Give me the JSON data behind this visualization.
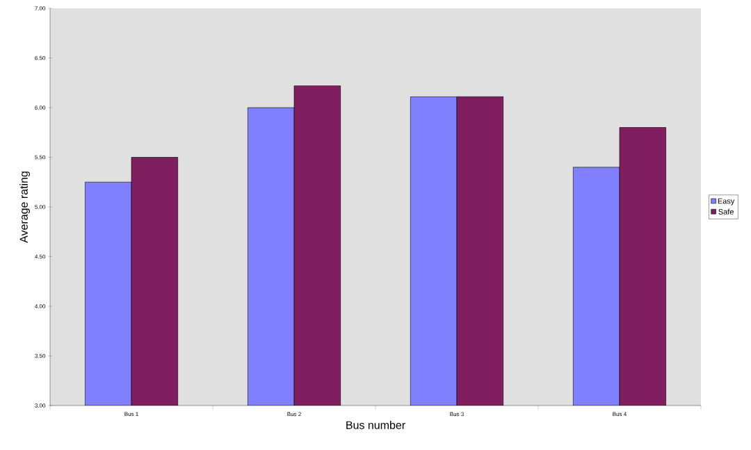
{
  "chart_data": {
    "type": "bar",
    "xlabel": "Bus number",
    "ylabel": "Average rating",
    "categories": [
      "Bus 1",
      "Bus 2",
      "Bus 3",
      "Bus 4"
    ],
    "series": [
      {
        "name": "Easy",
        "color": "#8080ff",
        "values": [
          5.25,
          6.0,
          6.11,
          5.4
        ]
      },
      {
        "name": "Safe",
        "color": "#7f1f5f",
        "values": [
          5.5,
          6.22,
          6.11,
          5.8
        ]
      }
    ],
    "ylim": [
      3,
      7
    ],
    "yticks": [
      {
        "value": 3,
        "label": "3.00"
      },
      {
        "value": 3.5,
        "label": "3.50"
      },
      {
        "value": 4,
        "label": "4.00"
      },
      {
        "value": 4.5,
        "label": "4.50"
      },
      {
        "value": 5,
        "label": "5.00"
      },
      {
        "value": 5.5,
        "label": "5.50"
      },
      {
        "value": 6,
        "label": "6.00"
      },
      {
        "value": 6.5,
        "label": "6.50"
      },
      {
        "value": 7,
        "label": "7.00"
      }
    ],
    "grid": false,
    "legend": "right"
  }
}
